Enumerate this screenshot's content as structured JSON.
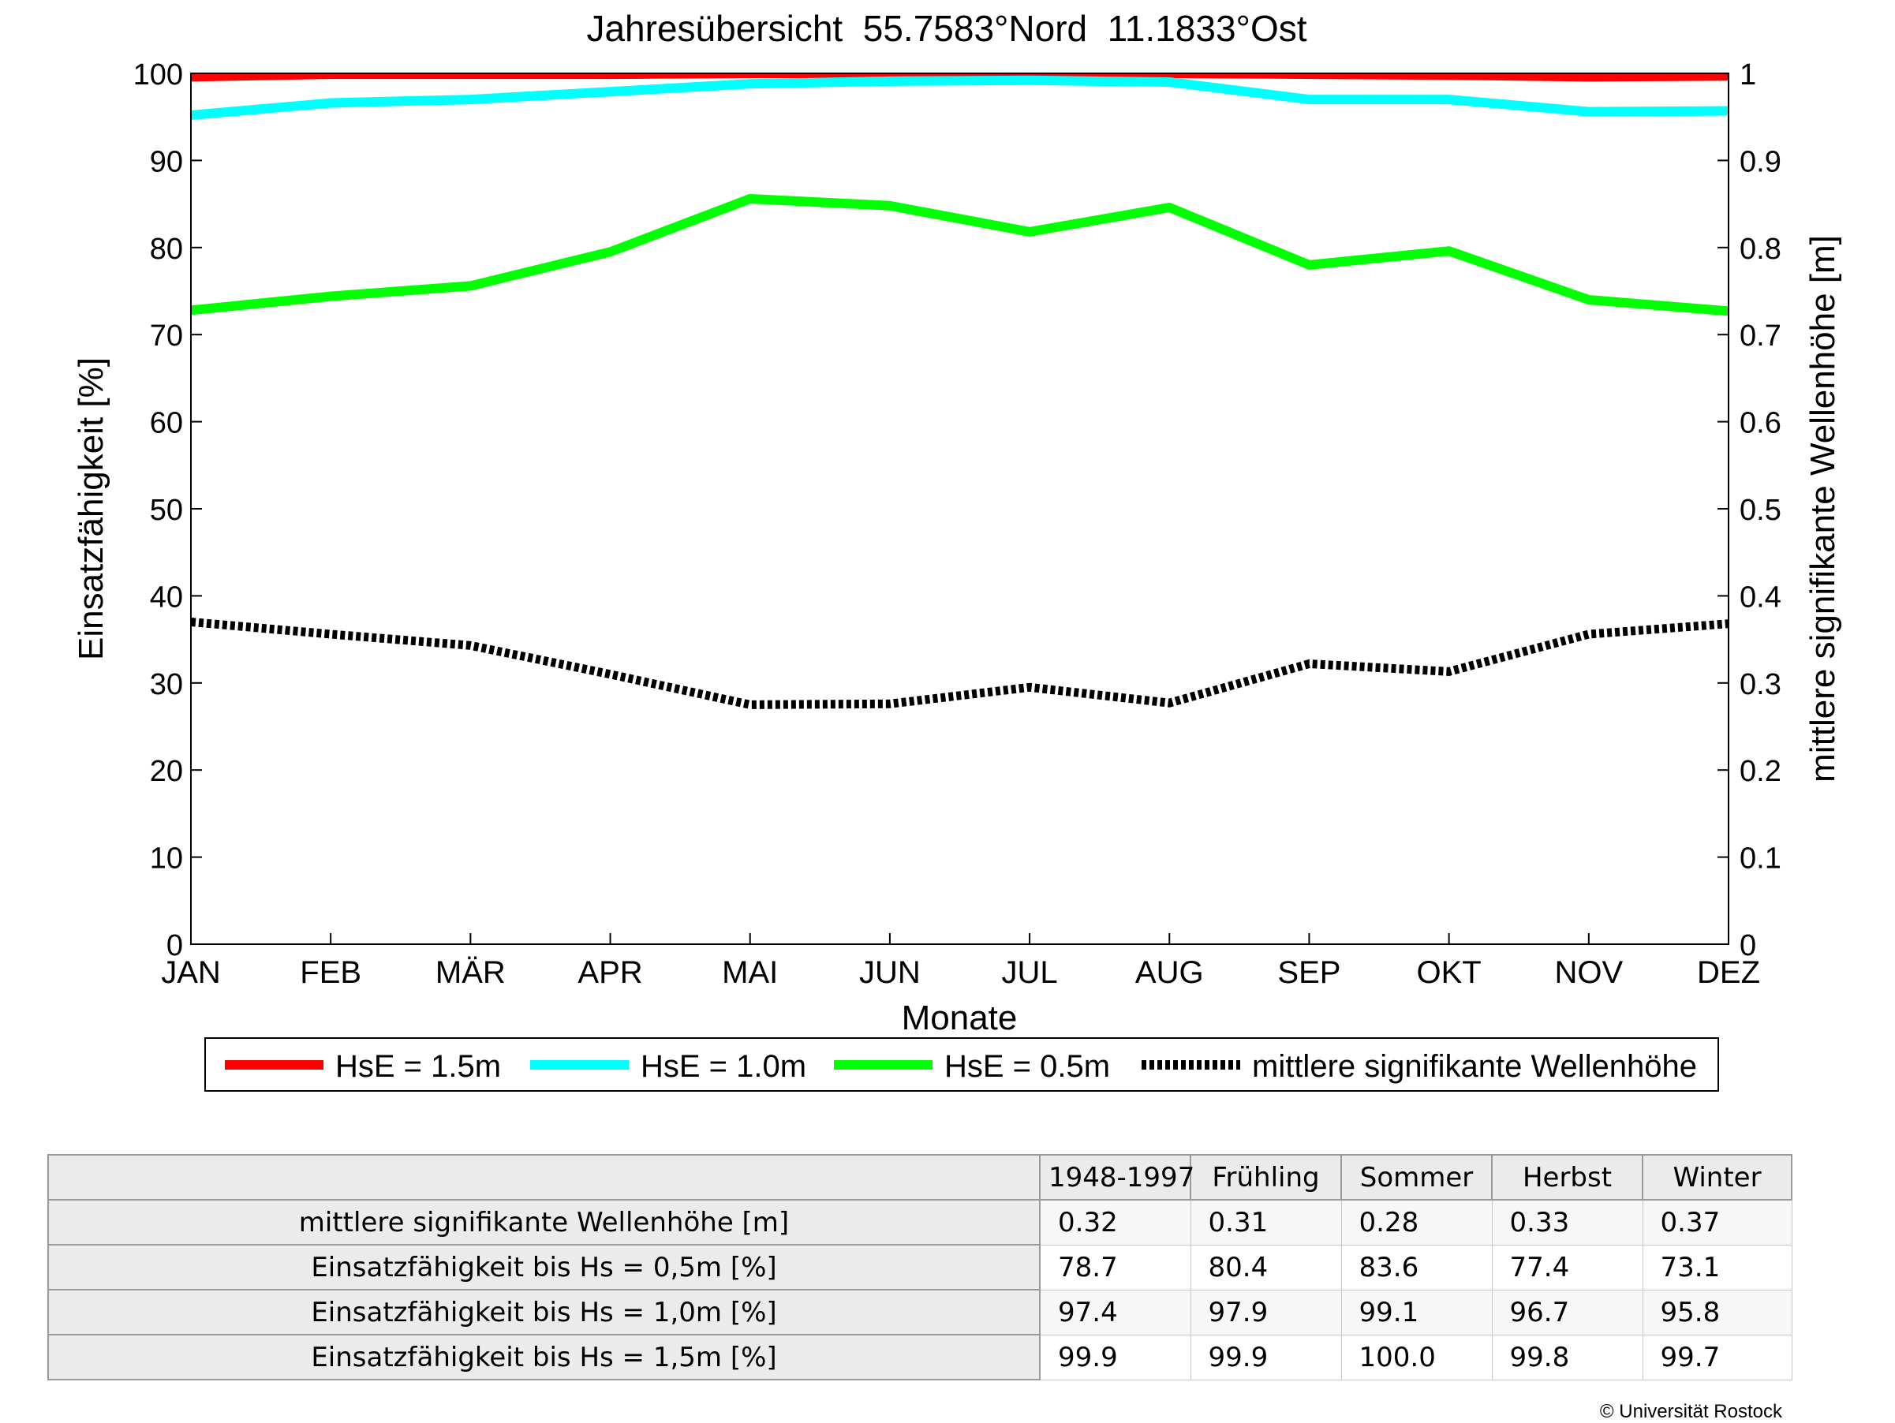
{
  "chart_data": {
    "type": "line",
    "title": "Jahresübersicht  55.7583°Nord  11.1833°Ost",
    "xlabel": "Monate",
    "ylabel_left": "Einsatzfähigkeit [%]",
    "ylabel_right": "mittlere signifikante Wellenhöhe [m]",
    "categories": [
      "JAN",
      "FEB",
      "MÄR",
      "APR",
      "MAI",
      "JUN",
      "JUL",
      "AUG",
      "SEP",
      "OKT",
      "NOV",
      "DEZ"
    ],
    "ylim_left": [
      0,
      100
    ],
    "ylim_right": [
      0,
      1
    ],
    "yticks_left": [
      "0",
      "10",
      "20",
      "30",
      "40",
      "50",
      "60",
      "70",
      "80",
      "90",
      "100"
    ],
    "yticks_right": [
      "0",
      "0.1",
      "0.2",
      "0.3",
      "0.4",
      "0.5",
      "0.6",
      "0.7",
      "0.8",
      "0.9",
      "1"
    ],
    "grid": false,
    "legend_position": "bottom",
    "series": [
      {
        "name": "HsE = 1.5m",
        "axis": "left",
        "color": "#ff0000",
        "style": "solid",
        "values": [
          99.6,
          99.9,
          99.9,
          99.9,
          100.0,
          100.0,
          100.0,
          100.0,
          99.9,
          99.8,
          99.6,
          99.7
        ]
      },
      {
        "name": "HsE = 1.0m",
        "axis": "left",
        "color": "#00ffff",
        "style": "solid",
        "values": [
          95.2,
          96.6,
          97.0,
          97.9,
          98.8,
          99.1,
          99.2,
          99.0,
          97.0,
          97.0,
          95.6,
          95.7
        ]
      },
      {
        "name": "HsE = 0.5m",
        "axis": "left",
        "color": "#00ff00",
        "style": "solid",
        "values": [
          72.8,
          74.4,
          75.6,
          79.5,
          85.6,
          84.8,
          81.8,
          84.6,
          78.0,
          79.6,
          74.0,
          72.7
        ]
      },
      {
        "name": "mittlere signifikante Wellenhöhe",
        "axis": "right",
        "color": "#000000",
        "style": "dotted",
        "values": [
          0.37,
          0.356,
          0.343,
          0.31,
          0.275,
          0.276,
          0.295,
          0.277,
          0.322,
          0.313,
          0.356,
          0.368
        ]
      }
    ]
  },
  "table": {
    "headers": [
      "",
      "1948-1997",
      "Frühling",
      "Sommer",
      "Herbst",
      "Winter"
    ],
    "rows": [
      {
        "label": "mittlere signifikante Wellenhöhe [m]",
        "values": [
          "0.32",
          "0.31",
          "0.28",
          "0.33",
          "0.37"
        ]
      },
      {
        "label": "Einsatzfähigkeit bis Hs = 0,5m [%]",
        "values": [
          "78.7",
          "80.4",
          "83.6",
          "77.4",
          "73.1"
        ]
      },
      {
        "label": "Einsatzfähigkeit bis Hs = 1,0m [%]",
        "values": [
          "97.4",
          "97.9",
          "99.1",
          "96.7",
          "95.8"
        ]
      },
      {
        "label": "Einsatzfähigkeit bis Hs = 1,5m [%]",
        "values": [
          "99.9",
          "99.9",
          "100.0",
          "99.8",
          "99.7"
        ]
      }
    ]
  },
  "copyright": "© Universität Rostock"
}
